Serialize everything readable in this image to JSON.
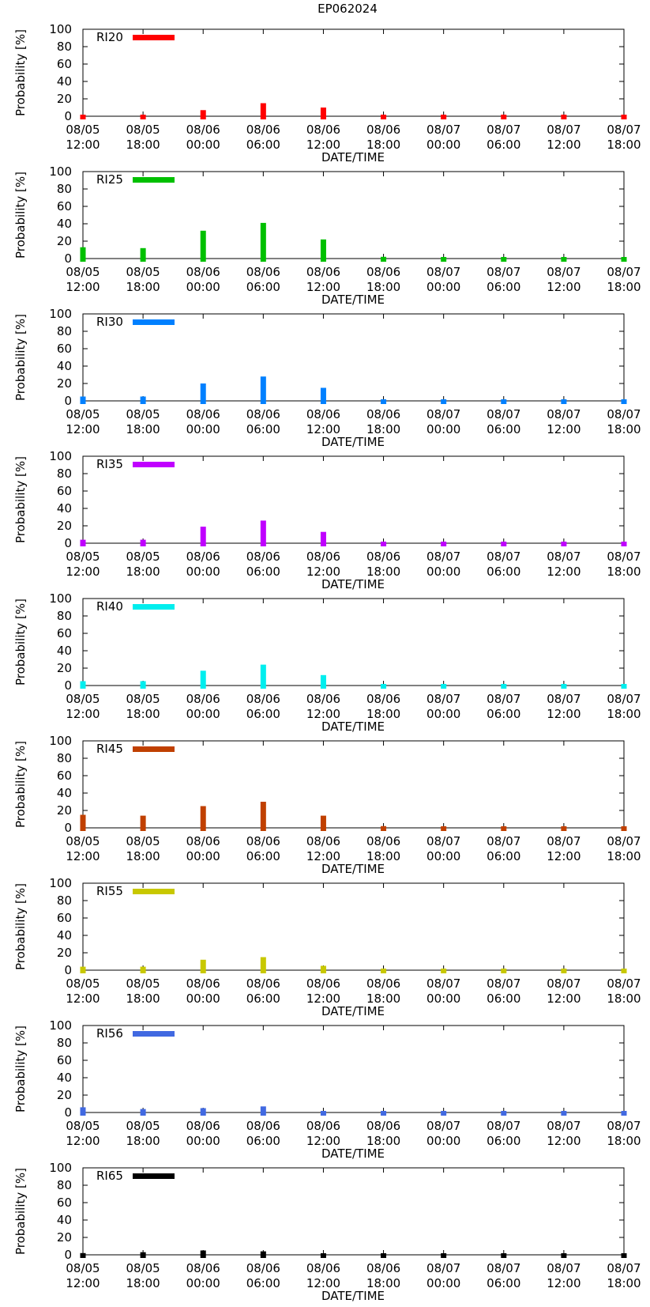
{
  "figure_title": "EP062024",
  "chart_data": [
    {
      "type": "bar",
      "legend": "RI20",
      "color": "#ff0000",
      "ylabel": "Probability [%]",
      "xlabel": "DATE/TIME",
      "ylim": [
        0,
        100
      ],
      "yticks": [
        "0",
        "20",
        "40",
        "60",
        "80",
        "100"
      ],
      "categories": [
        [
          "08/05",
          "12:00"
        ],
        [
          "08/05",
          "18:00"
        ],
        [
          "08/06",
          "00:00"
        ],
        [
          "08/06",
          "06:00"
        ],
        [
          "08/06",
          "12:00"
        ],
        [
          "08/06",
          "18:00"
        ],
        [
          "08/07",
          "00:00"
        ],
        [
          "08/07",
          "06:00"
        ],
        [
          "08/07",
          "12:00"
        ],
        [
          "08/07",
          "18:00"
        ]
      ],
      "values": [
        1,
        1,
        7,
        15,
        10,
        1,
        0,
        0,
        0,
        0
      ]
    },
    {
      "type": "bar",
      "legend": "RI25",
      "color": "#00c000",
      "ylabel": "Probability [%]",
      "xlabel": "DATE/TIME",
      "ylim": [
        0,
        100
      ],
      "yticks": [
        "0",
        "20",
        "40",
        "60",
        "80",
        "100"
      ],
      "categories": [
        [
          "08/05",
          "12:00"
        ],
        [
          "08/05",
          "18:00"
        ],
        [
          "08/06",
          "00:00"
        ],
        [
          "08/06",
          "06:00"
        ],
        [
          "08/06",
          "12:00"
        ],
        [
          "08/06",
          "18:00"
        ],
        [
          "08/07",
          "00:00"
        ],
        [
          "08/07",
          "06:00"
        ],
        [
          "08/07",
          "12:00"
        ],
        [
          "08/07",
          "18:00"
        ]
      ],
      "values": [
        13,
        12,
        32,
        41,
        22,
        2,
        0,
        0,
        0,
        0
      ]
    },
    {
      "type": "bar",
      "legend": "RI30",
      "color": "#0080ff",
      "ylabel": "Probability [%]",
      "xlabel": "DATE/TIME",
      "ylim": [
        0,
        100
      ],
      "yticks": [
        "0",
        "20",
        "40",
        "60",
        "80",
        "100"
      ],
      "categories": [
        [
          "08/05",
          "12:00"
        ],
        [
          "08/05",
          "18:00"
        ],
        [
          "08/06",
          "00:00"
        ],
        [
          "08/06",
          "06:00"
        ],
        [
          "08/06",
          "12:00"
        ],
        [
          "08/06",
          "18:00"
        ],
        [
          "08/07",
          "00:00"
        ],
        [
          "08/07",
          "06:00"
        ],
        [
          "08/07",
          "12:00"
        ],
        [
          "08/07",
          "18:00"
        ]
      ],
      "values": [
        5,
        5,
        20,
        28,
        15,
        1,
        0,
        0,
        0,
        0
      ]
    },
    {
      "type": "bar",
      "legend": "RI35",
      "color": "#c000ff",
      "ylabel": "Probability [%]",
      "xlabel": "DATE/TIME",
      "ylim": [
        0,
        100
      ],
      "yticks": [
        "0",
        "20",
        "40",
        "60",
        "80",
        "100"
      ],
      "categories": [
        [
          "08/05",
          "12:00"
        ],
        [
          "08/05",
          "18:00"
        ],
        [
          "08/06",
          "00:00"
        ],
        [
          "08/06",
          "06:00"
        ],
        [
          "08/06",
          "12:00"
        ],
        [
          "08/06",
          "18:00"
        ],
        [
          "08/07",
          "00:00"
        ],
        [
          "08/07",
          "06:00"
        ],
        [
          "08/07",
          "12:00"
        ],
        [
          "08/07",
          "18:00"
        ]
      ],
      "values": [
        4,
        4,
        19,
        26,
        13,
        0,
        0,
        0,
        0,
        0
      ]
    },
    {
      "type": "bar",
      "legend": "RI40",
      "color": "#00eeee",
      "ylabel": "Probability [%]",
      "xlabel": "DATE/TIME",
      "ylim": [
        0,
        100
      ],
      "yticks": [
        "0",
        "20",
        "40",
        "60",
        "80",
        "100"
      ],
      "categories": [
        [
          "08/05",
          "12:00"
        ],
        [
          "08/05",
          "18:00"
        ],
        [
          "08/06",
          "00:00"
        ],
        [
          "08/06",
          "06:00"
        ],
        [
          "08/06",
          "12:00"
        ],
        [
          "08/06",
          "18:00"
        ],
        [
          "08/07",
          "00:00"
        ],
        [
          "08/07",
          "06:00"
        ],
        [
          "08/07",
          "12:00"
        ],
        [
          "08/07",
          "18:00"
        ]
      ],
      "values": [
        5,
        5,
        17,
        24,
        12,
        0,
        0,
        0,
        0,
        0
      ]
    },
    {
      "type": "bar",
      "legend": "RI45",
      "color": "#c04000",
      "ylabel": "Probability [%]",
      "xlabel": "DATE/TIME",
      "ylim": [
        0,
        100
      ],
      "yticks": [
        "0",
        "20",
        "40",
        "60",
        "80",
        "100"
      ],
      "categories": [
        [
          "08/05",
          "12:00"
        ],
        [
          "08/05",
          "18:00"
        ],
        [
          "08/06",
          "00:00"
        ],
        [
          "08/06",
          "06:00"
        ],
        [
          "08/06",
          "12:00"
        ],
        [
          "08/06",
          "18:00"
        ],
        [
          "08/07",
          "00:00"
        ],
        [
          "08/07",
          "06:00"
        ],
        [
          "08/07",
          "12:00"
        ],
        [
          "08/07",
          "18:00"
        ]
      ],
      "values": [
        15,
        14,
        25,
        30,
        14,
        2,
        1,
        1,
        1,
        1
      ]
    },
    {
      "type": "bar",
      "legend": "RI55",
      "color": "#c8c800",
      "ylabel": "Probability [%]",
      "xlabel": "DATE/TIME",
      "ylim": [
        0,
        100
      ],
      "yticks": [
        "0",
        "20",
        "40",
        "60",
        "80",
        "100"
      ],
      "categories": [
        [
          "08/05",
          "12:00"
        ],
        [
          "08/05",
          "18:00"
        ],
        [
          "08/06",
          "00:00"
        ],
        [
          "08/06",
          "06:00"
        ],
        [
          "08/06",
          "12:00"
        ],
        [
          "08/06",
          "18:00"
        ],
        [
          "08/07",
          "00:00"
        ],
        [
          "08/07",
          "06:00"
        ],
        [
          "08/07",
          "12:00"
        ],
        [
          "08/07",
          "18:00"
        ]
      ],
      "values": [
        4,
        4,
        12,
        15,
        5,
        0,
        0,
        0,
        0,
        0
      ]
    },
    {
      "type": "bar",
      "legend": "RI56",
      "color": "#4169e1",
      "ylabel": "Probability [%]",
      "xlabel": "DATE/TIME",
      "ylim": [
        0,
        100
      ],
      "yticks": [
        "0",
        "20",
        "40",
        "60",
        "80",
        "100"
      ],
      "categories": [
        [
          "08/05",
          "12:00"
        ],
        [
          "08/05",
          "18:00"
        ],
        [
          "08/06",
          "00:00"
        ],
        [
          "08/06",
          "06:00"
        ],
        [
          "08/06",
          "12:00"
        ],
        [
          "08/06",
          "18:00"
        ],
        [
          "08/07",
          "00:00"
        ],
        [
          "08/07",
          "06:00"
        ],
        [
          "08/07",
          "12:00"
        ],
        [
          "08/07",
          "18:00"
        ]
      ],
      "values": [
        6,
        4,
        5,
        7,
        1,
        0,
        0,
        0,
        0,
        0
      ]
    },
    {
      "type": "bar",
      "legend": "RI65",
      "color": "#000000",
      "ylabel": "Probability [%]",
      "xlabel": "DATE/TIME",
      "ylim": [
        0,
        100
      ],
      "yticks": [
        "0",
        "20",
        "40",
        "60",
        "80",
        "100"
      ],
      "categories": [
        [
          "08/05",
          "12:00"
        ],
        [
          "08/05",
          "18:00"
        ],
        [
          "08/06",
          "00:00"
        ],
        [
          "08/06",
          "06:00"
        ],
        [
          "08/06",
          "12:00"
        ],
        [
          "08/06",
          "18:00"
        ],
        [
          "08/07",
          "00:00"
        ],
        [
          "08/07",
          "06:00"
        ],
        [
          "08/07",
          "12:00"
        ],
        [
          "08/07",
          "18:00"
        ]
      ],
      "values": [
        2,
        3,
        5,
        4,
        0,
        0,
        0,
        0,
        0,
        0
      ]
    }
  ]
}
